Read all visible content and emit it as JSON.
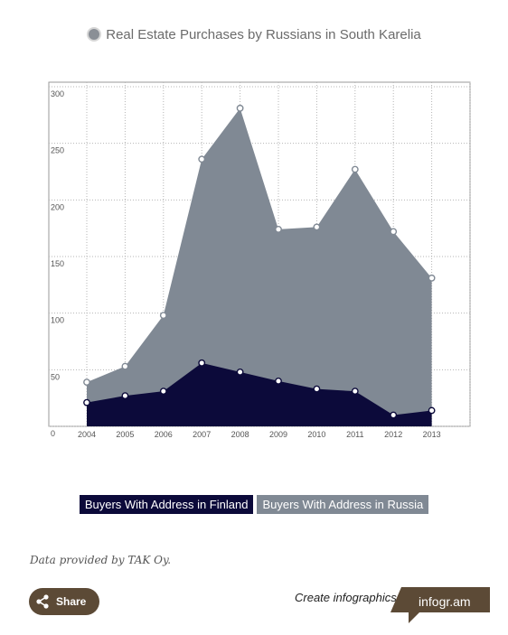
{
  "header": {
    "title": "Real Estate Purchases by Russians in South Karelia"
  },
  "chart_data": {
    "type": "area",
    "title": "Real Estate Purchases by Russians in South Karelia",
    "x": [
      "2004",
      "2005",
      "2006",
      "2007",
      "2008",
      "2009",
      "2010",
      "2011",
      "2012",
      "2013"
    ],
    "ylim": [
      0,
      300
    ],
    "yticks": [
      0,
      50,
      100,
      150,
      200,
      250,
      300
    ],
    "grid": true,
    "legend_position": "bottom",
    "series": [
      {
        "name": "Buyers With Address in Finland",
        "color": "#0c0a3a",
        "values": [
          21,
          27,
          31,
          56,
          48,
          40,
          33,
          31,
          10,
          14
        ]
      },
      {
        "name": "Buyers With Address in Russia",
        "color": "#808994",
        "values": [
          39,
          53,
          98,
          236,
          281,
          174,
          176,
          227,
          172,
          131
        ]
      }
    ]
  },
  "legend": {
    "items": [
      {
        "label": "Buyers With Address in Finland",
        "color": "#0c0a3a"
      },
      {
        "label": "Buyers With Address in Russia",
        "color": "#808994"
      }
    ]
  },
  "footer": {
    "credit": "Data provided by TAK Oy.",
    "share_label": "Share",
    "create_label": "Create infographics",
    "brand_label": "infogr.am"
  }
}
